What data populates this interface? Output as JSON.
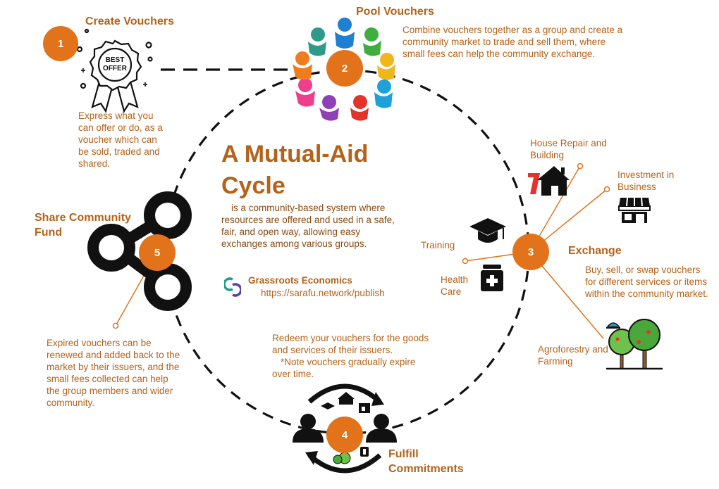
{
  "title": {
    "line1": "A Mutual-Aid",
    "line2": "Cycle",
    "description": "is a community-based system where resources are offered and used in a safe, fair, and open way, allowing easy exchanges among various groups."
  },
  "organization": {
    "name": "Grassroots Economics",
    "url": "https://sarafu.network/publish"
  },
  "steps": [
    {
      "number": "1",
      "title": "Create Vouchers",
      "description": "Express what you can offer or do, as a voucher which can be sold, traded and shared.",
      "badge_text": [
        "BEST",
        "OFFER"
      ]
    },
    {
      "number": "2",
      "title": "Pool Vouchers",
      "description": "Combine vouchers together as a group and create a community market to trade and sell them, where small fees can help the community exchange."
    },
    {
      "number": "3",
      "title": "Exchange",
      "description": "Buy, sell, or swap vouchers for different services or items within the community market."
    },
    {
      "number": "4",
      "title_line1": "Fulfill",
      "title_line2": "Commitments",
      "description": "Redeem your vouchers for the goods and services of their issuers.",
      "note": "*Note vouchers gradually expire over time."
    },
    {
      "number": "5",
      "title_line1": "Share Community",
      "title_line2": "Fund",
      "description": "Expired vouchers can be renewed and added back to the market by their issuers, and the small fees collected can help the group members and wider community."
    }
  ],
  "exchange_categories": {
    "house_repair": "House Repair and Building",
    "investment": "Investment in Business",
    "training": "Training",
    "health": "Health Care",
    "agroforestry": "Agroforestry and Farming"
  },
  "colors": {
    "accent": "#e2731b",
    "text": "#b5621a",
    "dash": "#111111"
  },
  "icons": {
    "step1": "best-offer-ribbon-icon",
    "step2": "people-circle-icon",
    "step5": "share-icon",
    "house": "house-repair-icon",
    "store": "storefront-icon",
    "training": "graduation-cap-icon",
    "health": "medicine-icon",
    "trees": "trees-icon",
    "step4": "exchange-cycle-icon"
  }
}
